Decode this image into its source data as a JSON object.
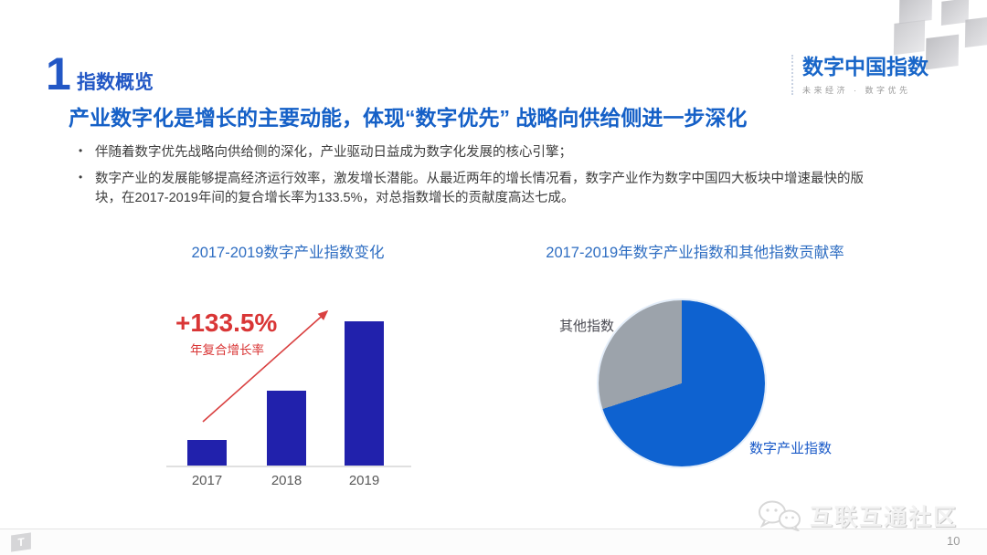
{
  "header": {
    "section_number": "1",
    "section_title": "指数概览"
  },
  "logo": {
    "title": "数字中国指数",
    "tagline": "未来经济 · 数字优先"
  },
  "headline": "产业数字化是增长的主要动能，体现“数字优先” 战略向供给侧进一步深化",
  "bullets": [
    "伴随着数字优先战略向供给侧的深化，产业驱动日益成为数字化发展的核心引擎；",
    "数字产业的发展能够提高经济运行效率，激发增长潜能。从最近两年的增长情况看，数字产业作为数字中国四大板块中增速最快的版块，在2017-2019年间的复合增长率为133.5%，对总指数增长的贡献度高达七成。"
  ],
  "footer": {
    "watermark": "互联互通社区",
    "corner_logo": "T",
    "page_number": "10"
  },
  "colors": {
    "accent_blue": "#1560C7",
    "section_blue": "#2257C5",
    "chart_title_blue": "#2F6EC2",
    "bar_blue": "#2121AC",
    "pie_blue": "#0E62D0",
    "pie_gray": "#9CA3AB",
    "annotation_red": "#D93636"
  },
  "chart_data": [
    {
      "type": "bar",
      "title": "2017-2019数字产业指数变化",
      "categories": [
        "2017",
        "2018",
        "2019"
      ],
      "values": [
        1,
        2.9,
        5.6
      ],
      "bar_color": "#2121AC",
      "annotation": "+133.5%",
      "annotation_label": "年复合增长率",
      "ylim": [
        0,
        6
      ],
      "grid": false,
      "legend_position": "none"
    },
    {
      "type": "pie",
      "title": "2017-2019年数字产业指数和其他指数贡献率",
      "slices": [
        {
          "label": "数字产业指数",
          "value": 70,
          "color": "#0E62D0"
        },
        {
          "label": "其他指数",
          "value": 30,
          "color": "#9CA3AB"
        }
      ],
      "legend_position": "labels beside slices"
    }
  ]
}
